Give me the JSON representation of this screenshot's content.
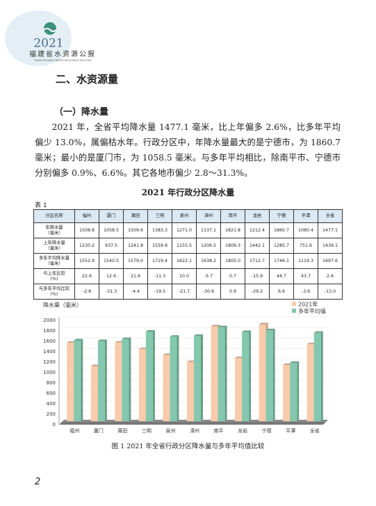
{
  "header": {
    "year": "2021",
    "title": "福建省水资源公报",
    "subtitle": "FUJIAN PROVINCE WATER RESOURCES BULLETIN"
  },
  "section_title": "二、水资源量",
  "subsection_title": "（一）降水量",
  "paragraph": "2021 年，全省平均降水量 1477.1 毫米，比上年偏多 2.6%，比多年平均偏少 13.0%，属偏枯水年。行政分区中，年降水量最大的是宁德市，为 1860.7 毫米；最小的是厦门市，为 1058.5 毫米。与多年平均相比，除南平市、宁德市分别偏多 0.9%、6.6%。其它各地市偏少 2.8～31.3%。",
  "table": {
    "title": "2021 年行政分区降水量",
    "label": "表 1",
    "header": [
      "分区名称",
      "福州",
      "厦门",
      "莆田",
      "三明",
      "泉州",
      "漳州",
      "南平",
      "龙岩",
      "宁德",
      "平潭",
      "全省"
    ],
    "rows": [
      [
        "年降水量\n（毫米）",
        "1508.8",
        "1058.5",
        "1509.6",
        "1383.3",
        "1271.0",
        "1137.1",
        "1821.8",
        "1212.4",
        "1860.7",
        "1080.4",
        "1477.1"
      ],
      [
        "上年降水量\n（毫米）",
        "1230.2",
        "937.5",
        "1241.8",
        "1559.8",
        "1155.5",
        "1206.5",
        "1809.3",
        "1442.1",
        "1285.7",
        "751.6",
        "1439.1"
      ],
      [
        "多年平均降水量\n（毫米）",
        "1552.9",
        "1540.5",
        "1579.0",
        "1719.4",
        "1622.1",
        "1638.2",
        "1805.0",
        "1712.7",
        "1746.1",
        "1119.3",
        "1697.6"
      ],
      [
        "与上年比较\n(%)",
        "22.6",
        "12.9",
        "21.6",
        "-11.3",
        "10.0",
        "-5.7",
        "0.7",
        "-15.9",
        "44.7",
        "43.7",
        "2.6"
      ],
      [
        "与多年平均比较\n(%)",
        "-2.8",
        "-31.3",
        "-4.4",
        "-19.5",
        "-21.7",
        "-30.6",
        "0.9",
        "-29.2",
        "6.6",
        "-3.6",
        "-13.0"
      ]
    ]
  },
  "chart_data": {
    "type": "bar",
    "y_label": "降水量（毫米）",
    "categories": [
      "福州",
      "厦门",
      "莆田",
      "三明",
      "泉州",
      "漳州",
      "南平",
      "龙岩",
      "宁德",
      "平潭",
      "全省"
    ],
    "series": [
      {
        "name": "2021年",
        "color": "#f8cbaa",
        "values": [
          1508.8,
          1058.5,
          1509.6,
          1383.3,
          1271.0,
          1137.1,
          1821.8,
          1212.4,
          1860.7,
          1080.4,
          1477.1
        ]
      },
      {
        "name": "多年平均值",
        "color": "#84c8ae",
        "values": [
          1552.9,
          1540.5,
          1579.0,
          1719.4,
          1622.1,
          1638.2,
          1805.0,
          1712.7,
          1746.1,
          1119.3,
          1697.6
        ]
      }
    ],
    "ylim": [
      0,
      2000
    ],
    "yticks": [
      0,
      200,
      400,
      600,
      800,
      1000,
      1200,
      1400,
      1600,
      1800,
      2000
    ],
    "grid": true,
    "legend": "top-right"
  },
  "figure_caption": "图 1   2021 年全省行政分区降水量与多年平均值比较",
  "page_number": "2"
}
